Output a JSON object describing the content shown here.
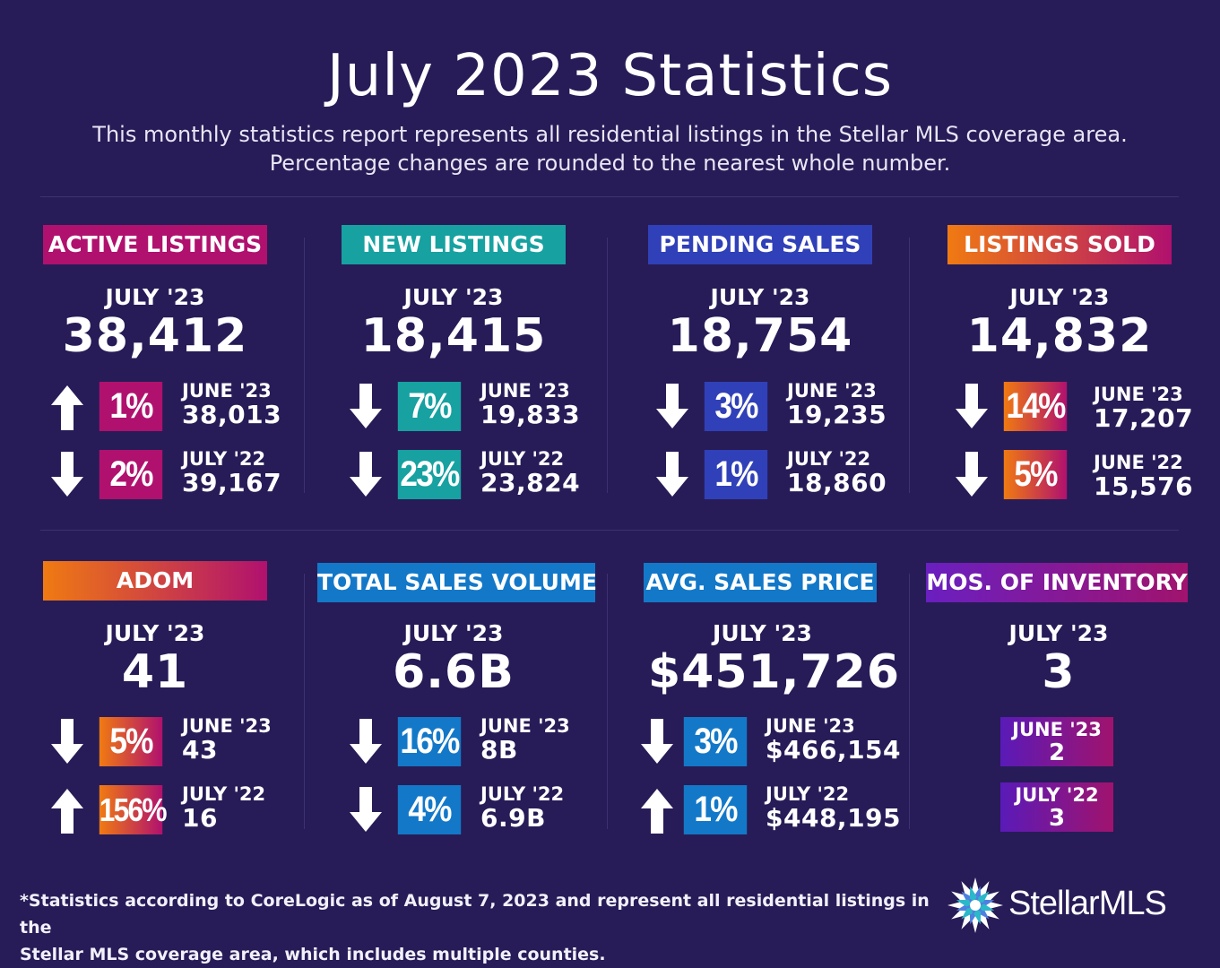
{
  "header": {
    "title": "July 2023 Statistics",
    "subtitle_line1": "This monthly statistics report represents all residential listings in the Stellar MLS coverage area.",
    "subtitle_line2": "Percentage changes are rounded to the nearest whole number."
  },
  "colors": {
    "background": "#271c57",
    "magenta": "#b0116e",
    "teal": "#17a1a1",
    "royal_blue": "#3040b8",
    "orange": "#f07a12",
    "blue": "#1378c8",
    "purple": "#6a1fc0"
  },
  "panels": [
    {
      "label": "ACTIVE LISTINGS",
      "period": "JULY '23",
      "value": "38,412",
      "rows": [
        {
          "direction": "up",
          "arrow_icon": "arrow-up-icon",
          "pct": "1%",
          "label": "JUNE '23",
          "value": "38,013"
        },
        {
          "direction": "down",
          "arrow_icon": "arrow-down-icon",
          "pct": "2%",
          "label": "JULY '22",
          "value": "39,167"
        }
      ]
    },
    {
      "label": "NEW LISTINGS",
      "period": "JULY '23",
      "value": "18,415",
      "rows": [
        {
          "direction": "down",
          "arrow_icon": "arrow-down-icon",
          "pct": "7%",
          "label": "JUNE '23",
          "value": "19,833"
        },
        {
          "direction": "down",
          "arrow_icon": "arrow-down-icon",
          "pct": "23%",
          "label": "JULY '22",
          "value": "23,824"
        }
      ]
    },
    {
      "label": "PENDING SALES",
      "period": "JULY '23",
      "value": "18,754",
      "rows": [
        {
          "direction": "down",
          "arrow_icon": "arrow-down-icon",
          "pct": "3%",
          "label": "JUNE '23",
          "value": "19,235"
        },
        {
          "direction": "down",
          "arrow_icon": "arrow-down-icon",
          "pct": "1%",
          "label": "JULY '22",
          "value": "18,860"
        }
      ]
    },
    {
      "label": "LISTINGS SOLD",
      "period": "JULY '23",
      "value": "14,832",
      "rows": [
        {
          "direction": "down",
          "arrow_icon": "arrow-down-icon",
          "pct": "14%",
          "label": "JUNE '23",
          "value": "17,207"
        },
        {
          "direction": "down",
          "arrow_icon": "arrow-down-icon",
          "pct": "5%",
          "label": "JUNE '22",
          "value": "15,576"
        }
      ]
    },
    {
      "label": "ADOM",
      "period": "JULY '23",
      "value": "41",
      "rows": [
        {
          "direction": "down",
          "arrow_icon": "arrow-down-icon",
          "pct": "5%",
          "label": "JUNE '23",
          "value": "43"
        },
        {
          "direction": "up",
          "arrow_icon": "arrow-up-icon",
          "pct": "156%",
          "label": "JULY '22",
          "value": "16"
        }
      ]
    },
    {
      "label": "TOTAL SALES VOLUME",
      "period": "JULY '23",
      "value": "6.6B",
      "rows": [
        {
          "direction": "down",
          "arrow_icon": "arrow-down-icon",
          "pct": "16%",
          "label": "JUNE '23",
          "value": "8B"
        },
        {
          "direction": "down",
          "arrow_icon": "arrow-down-icon",
          "pct": "4%",
          "label": "JULY '22",
          "value": "6.9B"
        }
      ]
    },
    {
      "label": "AVG. SALES PRICE",
      "period": "JULY '23",
      "value": "$451,726",
      "rows": [
        {
          "direction": "down",
          "arrow_icon": "arrow-down-icon",
          "pct": "3%",
          "label": "JUNE '23",
          "value": "$466,154"
        },
        {
          "direction": "up",
          "arrow_icon": "arrow-up-icon",
          "pct": "1%",
          "label": "JULY '22",
          "value": "$448,195"
        }
      ]
    },
    {
      "label": "MOS. OF INVENTORY",
      "period": "JULY '23",
      "value": "3",
      "rows": [
        {
          "label": "JUNE '23",
          "value": "2"
        },
        {
          "label": "JULY '22",
          "value": "3"
        }
      ]
    }
  ],
  "footer": {
    "footnote_line1": "*Statistics according to CoreLogic as of August 7, 2023 and represent all residential listings in the",
    "footnote_line2": "Stellar MLS coverage area, which includes multiple counties.",
    "logo_icon": "starburst-logo-icon",
    "logo_text": "StellarMLS"
  }
}
